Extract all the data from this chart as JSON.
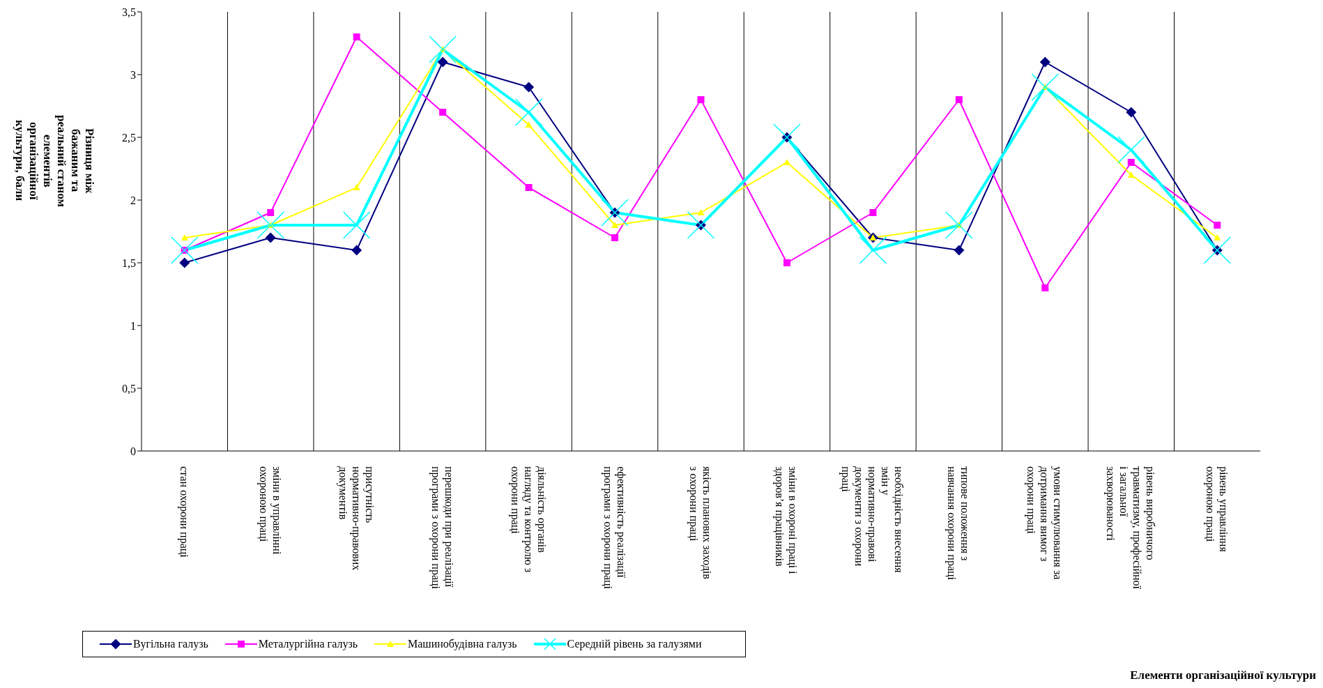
{
  "chart_data": {
    "type": "line",
    "ylabel": "Різниця між бажаним та реальний станом елементів організаційної культури, бали",
    "annotations": [
      "Елементи організаційної культури"
    ],
    "categories": [
      "стан охорони праці",
      "зміни в управлінні охороною праці",
      "присутність нормативно-правових документів",
      "перешкоди при реалізації програми з охорони праці",
      "діяльність органів нагляду та контролю з охорони праці",
      "ефективність реалізації програми з охорони праці",
      "якість планових заходів з охорони праці",
      "зміни в охороні праці і здоров’я працівників",
      "необхідність внесення змін у нормативно-правові документи з охорони праці",
      "типове положення з навчання охорони праці",
      "умови стимулювання за дотримання вимог з охорони праці",
      "рівень виробничого травматизму, професійної і загальної захворюваності",
      "рівень управління охороною праці"
    ],
    "series": [
      {
        "name": "Вугільна галузь",
        "color": "#000080",
        "marker": "diamond",
        "values": [
          1.5,
          1.7,
          1.6,
          3.1,
          2.9,
          1.9,
          1.8,
          2.5,
          1.7,
          1.6,
          3.1,
          2.7,
          1.6
        ]
      },
      {
        "name": "Металургійна галузь",
        "color": "#ff00ff",
        "marker": "square",
        "values": [
          1.6,
          1.9,
          3.3,
          2.7,
          2.1,
          1.7,
          2.8,
          1.5,
          1.9,
          2.8,
          1.3,
          2.3,
          1.8
        ]
      },
      {
        "name": "Машинобудівна галузь",
        "color": "#ffff00",
        "marker": "triangle",
        "values": [
          1.7,
          1.8,
          2.1,
          3.2,
          2.6,
          1.8,
          1.9,
          2.3,
          1.7,
          1.8,
          2.9,
          2.2,
          1.7
        ]
      },
      {
        "name": "Середній рівень за галузями",
        "color": "#00ffff",
        "marker": "cross",
        "values": [
          1.6,
          1.8,
          1.8,
          3.2,
          2.7,
          1.9,
          1.8,
          2.5,
          1.6,
          1.8,
          2.9,
          2.4,
          1.6
        ]
      }
    ],
    "ylim": [
      0,
      3.5
    ],
    "yticks": [
      0,
      {
        "value": 0.5,
        "label": "0,5"
      },
      1,
      {
        "value": 1.5,
        "label": "1,5"
      },
      2,
      {
        "value": 2.5,
        "label": "2,5"
      },
      3,
      {
        "value": 3.5,
        "label": "3,5"
      }
    ],
    "grid": "x",
    "legend": "bottom left"
  }
}
